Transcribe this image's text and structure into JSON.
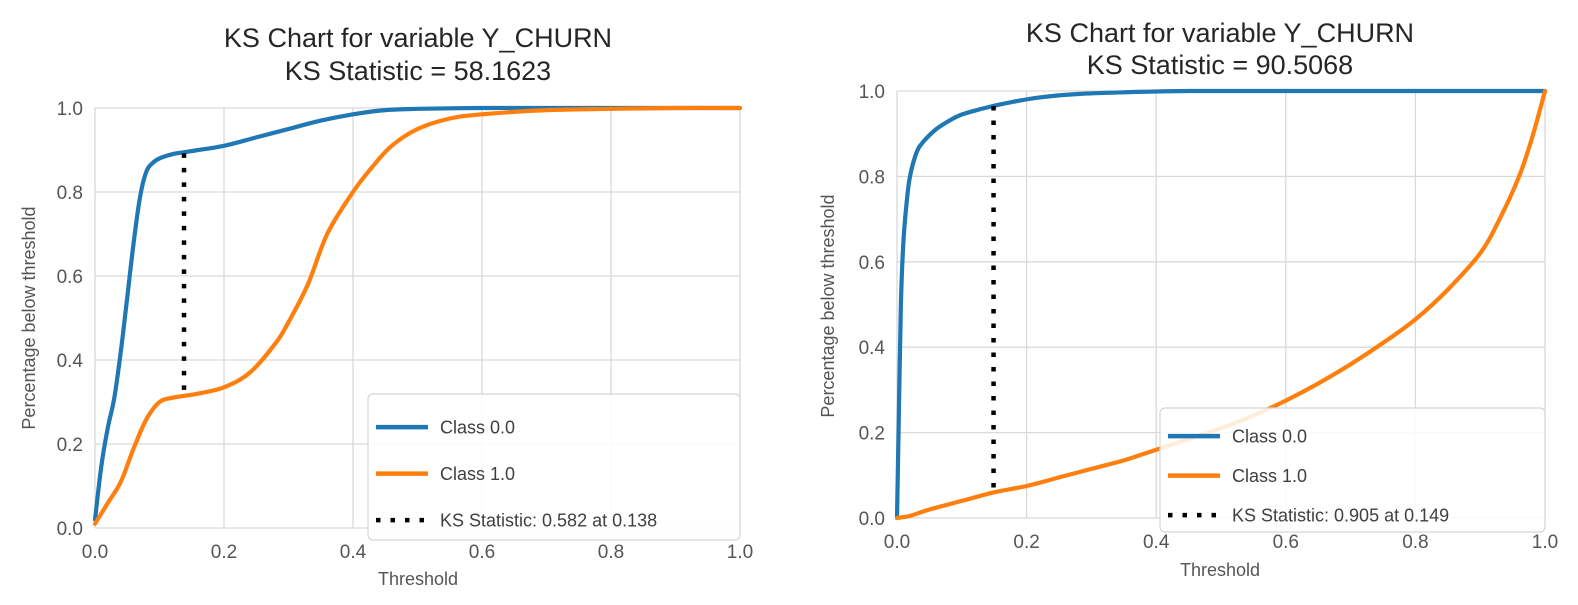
{
  "chart_data": [
    {
      "type": "line",
      "title": "KS Chart for variable Y_CHURN",
      "subtitle": "KS Statistic = 58.1623",
      "xlabel": "Threshold",
      "ylabel": "Percentage below threshold",
      "xlim": [
        0.0,
        1.0
      ],
      "ylim": [
        0.0,
        1.0
      ],
      "xticks": [
        "0.0",
        "0.2",
        "0.4",
        "0.6",
        "0.8",
        "1.0"
      ],
      "yticks": [
        "0.0",
        "0.2",
        "0.4",
        "0.6",
        "0.8",
        "1.0"
      ],
      "grid": true,
      "legend_position": "lower right",
      "series": [
        {
          "name": "Class 0.0",
          "color": "#1f77b4",
          "x": [
            0.0,
            0.01,
            0.02,
            0.03,
            0.04,
            0.05,
            0.06,
            0.07,
            0.08,
            0.09,
            0.1,
            0.12,
            0.14,
            0.16,
            0.2,
            0.25,
            0.3,
            0.35,
            0.4,
            0.45,
            0.5,
            0.6,
            0.7,
            0.8,
            0.9,
            1.0
          ],
          "y": [
            0.02,
            0.15,
            0.24,
            0.31,
            0.42,
            0.55,
            0.68,
            0.79,
            0.85,
            0.87,
            0.88,
            0.89,
            0.895,
            0.9,
            0.91,
            0.93,
            0.95,
            0.97,
            0.985,
            0.995,
            0.998,
            1.0,
            1.0,
            1.0,
            1.0,
            1.0
          ]
        },
        {
          "name": "Class 1.0",
          "color": "#ff7f0e",
          "x": [
            0.0,
            0.02,
            0.04,
            0.06,
            0.08,
            0.1,
            0.12,
            0.14,
            0.16,
            0.2,
            0.24,
            0.28,
            0.3,
            0.33,
            0.36,
            0.4,
            0.43,
            0.46,
            0.5,
            0.55,
            0.6,
            0.7,
            0.8,
            0.9,
            1.0
          ],
          "y": [
            0.01,
            0.06,
            0.11,
            0.19,
            0.26,
            0.3,
            0.31,
            0.315,
            0.32,
            0.335,
            0.37,
            0.44,
            0.49,
            0.58,
            0.7,
            0.8,
            0.86,
            0.91,
            0.95,
            0.975,
            0.985,
            0.995,
            0.998,
            1.0,
            1.0
          ]
        }
      ],
      "ks_line": {
        "label": "KS Statistic: 0.582 at 0.138",
        "x": 0.138,
        "y_from": 0.31,
        "y_to": 0.892,
        "color": "#000000",
        "style": "dotted"
      }
    },
    {
      "type": "line",
      "title": "KS Chart for variable Y_CHURN",
      "subtitle": "KS Statistic = 90.5068",
      "xlabel": "Threshold",
      "ylabel": "Percentage below threshold",
      "xlim": [
        0.0,
        1.0
      ],
      "ylim": [
        0.0,
        1.0
      ],
      "xticks": [
        "0.0",
        "0.2",
        "0.4",
        "0.6",
        "0.8",
        "1.0"
      ],
      "yticks": [
        "0.0",
        "0.2",
        "0.4",
        "0.6",
        "0.8",
        "1.0"
      ],
      "grid": true,
      "legend_position": "lower right",
      "series": [
        {
          "name": "Class 0.0",
          "color": "#1f77b4",
          "x": [
            0.0,
            0.003,
            0.006,
            0.01,
            0.015,
            0.02,
            0.03,
            0.04,
            0.06,
            0.08,
            0.1,
            0.13,
            0.149,
            0.18,
            0.22,
            0.28,
            0.35,
            0.45,
            0.6,
            0.8,
            1.0
          ],
          "y": [
            0.0,
            0.25,
            0.5,
            0.65,
            0.74,
            0.8,
            0.855,
            0.88,
            0.91,
            0.93,
            0.945,
            0.958,
            0.965,
            0.975,
            0.985,
            0.993,
            0.997,
            1.0,
            1.0,
            1.0,
            1.0
          ]
        },
        {
          "name": "Class 1.0",
          "color": "#ff7f0e",
          "x": [
            0.0,
            0.02,
            0.05,
            0.1,
            0.149,
            0.2,
            0.25,
            0.3,
            0.35,
            0.4,
            0.45,
            0.5,
            0.55,
            0.6,
            0.65,
            0.7,
            0.75,
            0.8,
            0.85,
            0.9,
            0.93,
            0.96,
            0.98,
            1.0
          ],
          "y": [
            0.0,
            0.005,
            0.02,
            0.04,
            0.06,
            0.075,
            0.095,
            0.115,
            0.135,
            0.16,
            0.185,
            0.21,
            0.24,
            0.275,
            0.315,
            0.36,
            0.41,
            0.465,
            0.535,
            0.62,
            0.7,
            0.8,
            0.89,
            1.0
          ]
        }
      ],
      "ks_line": {
        "label": "KS Statistic: 0.905 at 0.149",
        "x": 0.149,
        "y_from": 0.06,
        "y_to": 0.965,
        "color": "#000000",
        "style": "dotted"
      }
    }
  ]
}
